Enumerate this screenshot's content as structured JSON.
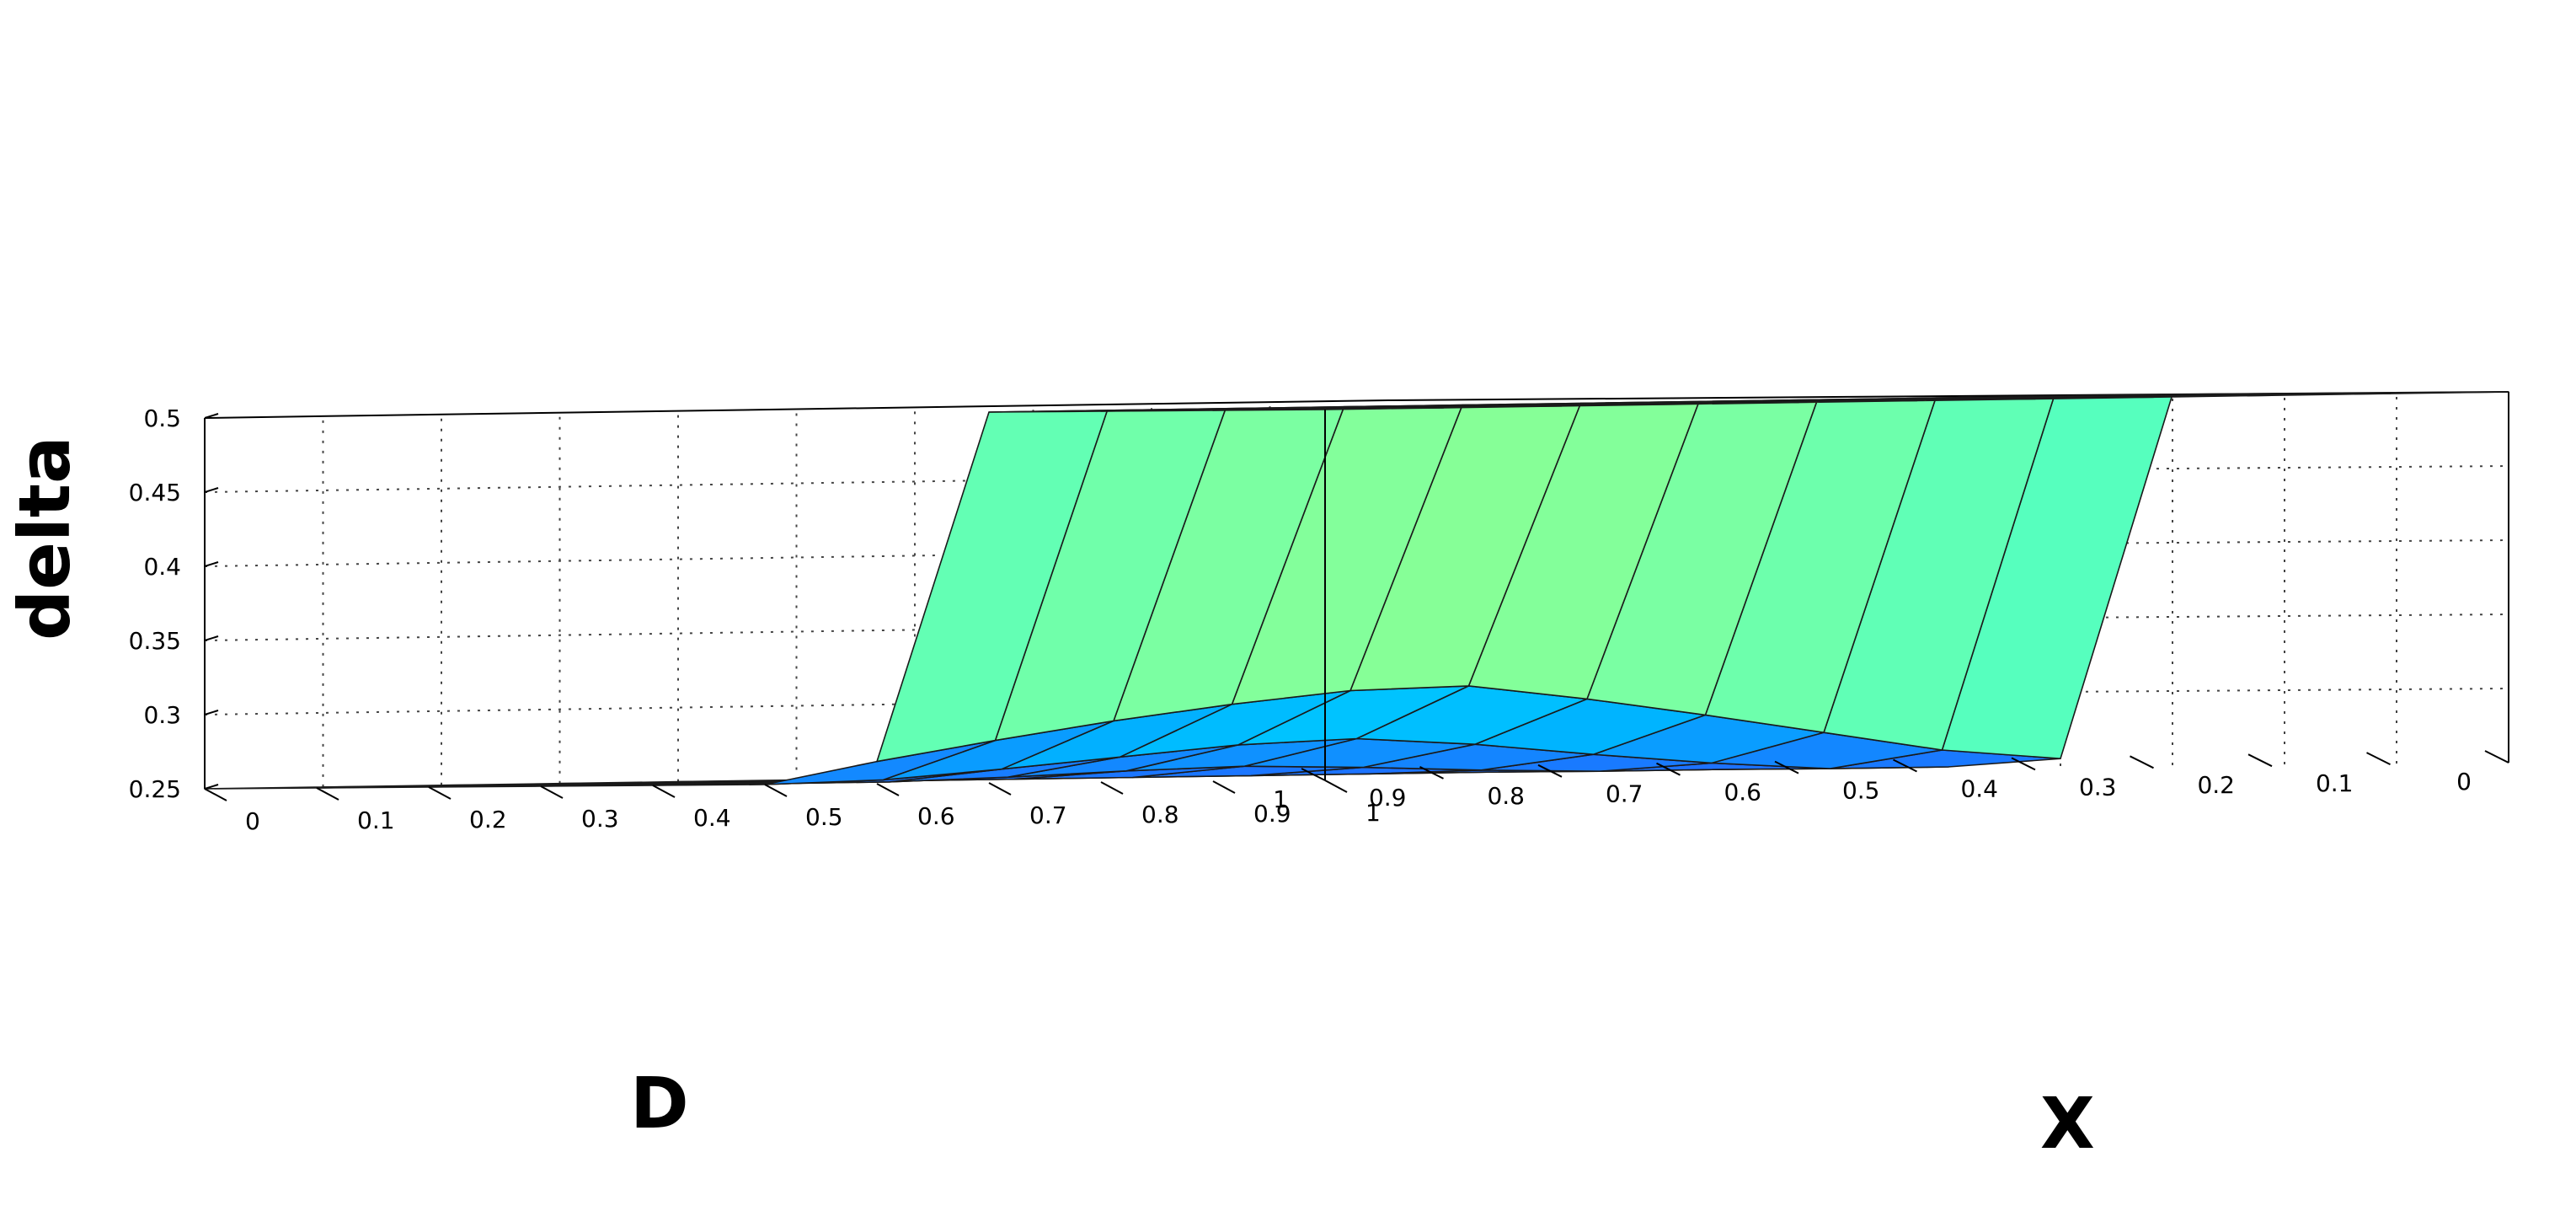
{
  "chart_data": {
    "type": "surface",
    "title": "",
    "zlabel": "delta",
    "xlabel": "X",
    "ylabel": "D",
    "zlim": [
      0.25,
      0.5
    ],
    "xlim": [
      0,
      1
    ],
    "ylim": [
      0,
      1
    ],
    "grid": true,
    "z_ticks": [
      "0.25",
      "0.3",
      "0.35",
      "0.4",
      "0.45",
      "0.5"
    ],
    "x_ticks": [
      "0",
      "0.1",
      "0.2",
      "0.3",
      "0.4",
      "0.5",
      "0.6",
      "0.7",
      "0.8",
      "0.9",
      "1"
    ],
    "d_ticks": [
      "0",
      "0.1",
      "0.2",
      "0.3",
      "0.4",
      "0.5",
      "0.6",
      "0.7",
      "0.8",
      "0.9",
      "1"
    ],
    "colormap": [
      "#1e6fff",
      "#00b4ff",
      "#00ffff",
      "#80ff9e",
      "#ffff00"
    ],
    "surface": {
      "x": [
        0,
        0.1,
        0.2,
        0.3,
        0.4,
        0.5,
        0.6,
        0.7,
        0.8,
        0.9,
        1
      ],
      "d": [
        0,
        0.1,
        0.2,
        0.3,
        0.4,
        0.5,
        0.6,
        0.7,
        0.8,
        0.9,
        1
      ],
      "z": [
        [
          0.25,
          0.25,
          0.25,
          0.25,
          0.25,
          0.25,
          0.25,
          0.25,
          0.25,
          0.25,
          0.25
        ],
        [
          0.25,
          0.25,
          0.25,
          0.25,
          0.25,
          0.25,
          0.25,
          0.25,
          0.25,
          0.25,
          0.25
        ],
        [
          0.25,
          0.25,
          0.25,
          0.25,
          0.25,
          0.25,
          0.25,
          0.25,
          0.25,
          0.25,
          0.25
        ],
        [
          0.25,
          0.25,
          0.25,
          0.25,
          0.25,
          0.25,
          0.25,
          0.25,
          0.25,
          0.25,
          0.25
        ],
        [
          0.25,
          0.25,
          0.25,
          0.252,
          0.255,
          0.257,
          0.255,
          0.252,
          0.25,
          0.25,
          0.25
        ],
        [
          0.25,
          0.25,
          0.255,
          0.262,
          0.27,
          0.275,
          0.272,
          0.265,
          0.258,
          0.252,
          0.25
        ],
        [
          0.255,
          0.262,
          0.275,
          0.288,
          0.3,
          0.31,
          0.308,
          0.3,
          0.29,
          0.278,
          0.265
        ],
        [
          0.5,
          0.5,
          0.5,
          0.5,
          0.5,
          0.5,
          0.5,
          0.5,
          0.5,
          0.5,
          0.5
        ],
        [
          0.5,
          0.5,
          0.5,
          0.5,
          0.5,
          0.5,
          0.5,
          0.5,
          0.5,
          0.5,
          0.5
        ],
        [
          0.5,
          0.5,
          0.5,
          0.5,
          0.5,
          0.5,
          0.5,
          0.5,
          0.5,
          0.5,
          0.5
        ],
        [
          0.5,
          0.5,
          0.5,
          0.5,
          0.5,
          0.5,
          0.5,
          0.5,
          0.5,
          0.5,
          0.5
        ]
      ]
    }
  }
}
